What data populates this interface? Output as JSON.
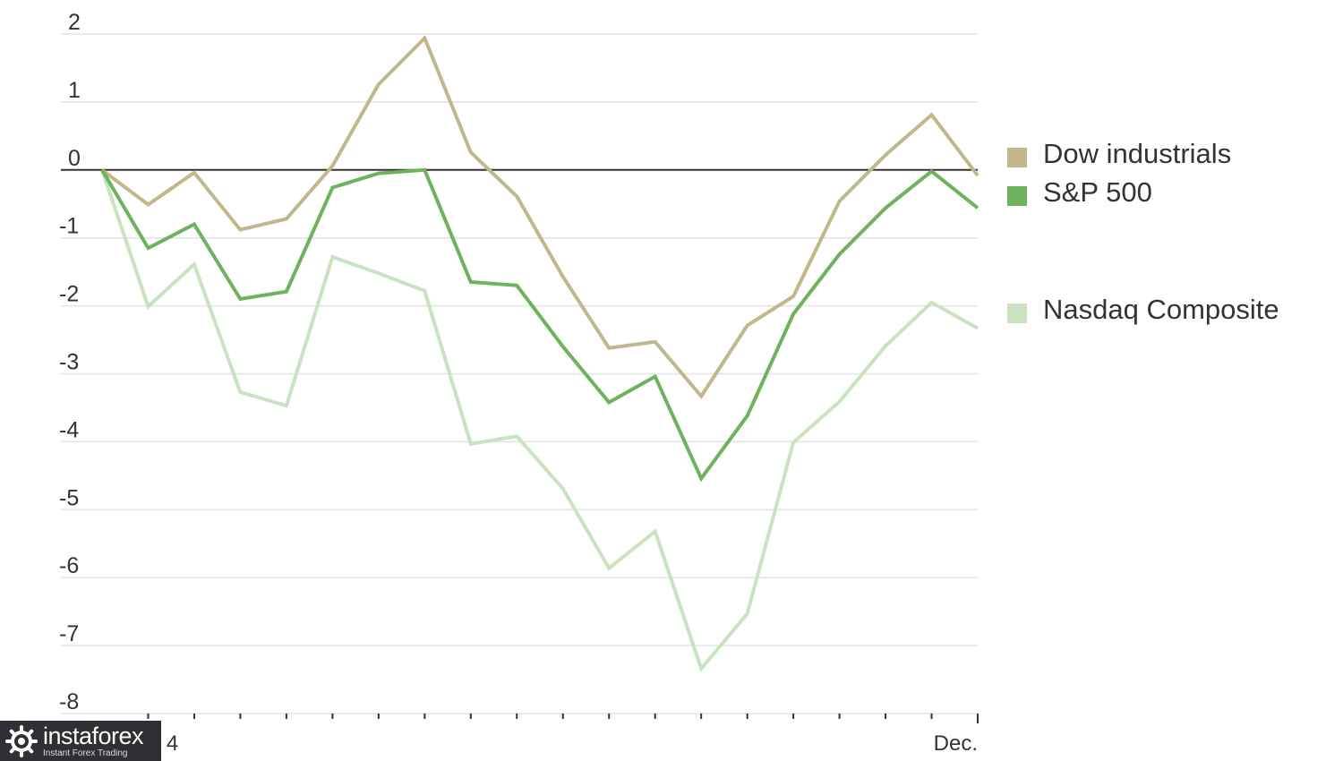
{
  "chart_data": {
    "type": "line",
    "title": "",
    "xlabel": "",
    "ylabel": "",
    "ylim": [
      -8,
      2
    ],
    "yticks": [
      2,
      1,
      0,
      -1,
      -2,
      -3,
      -4,
      -5,
      -6,
      -7,
      -8
    ],
    "ytick_labels": [
      "2",
      "1",
      "0",
      "-1",
      "-2",
      "-3",
      "-4",
      "-5",
      "-6",
      "-7",
      "-8"
    ],
    "x_tick_labels": [
      {
        "index": 1,
        "text": "Nov. 4"
      },
      {
        "index": 19,
        "text": "Dec."
      }
    ],
    "x": [
      0,
      1,
      2,
      3,
      4,
      5,
      6,
      7,
      8,
      9,
      10,
      11,
      12,
      13,
      14,
      15,
      16,
      17,
      18,
      19
    ],
    "grid": true,
    "legend_position": "right",
    "series": [
      {
        "name": "Dow industrials",
        "color": "#c2b78a",
        "values": [
          0.0,
          -0.51,
          -0.04,
          -0.88,
          -0.72,
          0.06,
          1.26,
          1.94,
          0.26,
          -0.39,
          -1.57,
          -2.62,
          -2.53,
          -3.33,
          -2.29,
          -1.86,
          -0.46,
          0.22,
          0.81,
          -0.08
        ]
      },
      {
        "name": "S&P 500",
        "color": "#6db35c",
        "values": [
          0.0,
          -1.15,
          -0.8,
          -1.9,
          -1.79,
          -0.26,
          -0.05,
          0.0,
          -1.65,
          -1.7,
          -2.6,
          -3.42,
          -3.04,
          -4.54,
          -3.62,
          -2.12,
          -1.24,
          -0.56,
          -0.02,
          -0.56
        ]
      },
      {
        "name": "Nasdaq Composite",
        "color": "#c9e2bf",
        "values": [
          0.0,
          -2.01,
          -1.39,
          -3.27,
          -3.47,
          -1.28,
          -1.52,
          -1.78,
          -4.03,
          -3.92,
          -4.69,
          -5.86,
          -5.32,
          -7.34,
          -6.53,
          -4.01,
          -3.41,
          -2.59,
          -1.95,
          -2.33
        ]
      }
    ]
  },
  "watermark": {
    "brand": "instaforex",
    "tagline": "Instant Forex Trading"
  }
}
